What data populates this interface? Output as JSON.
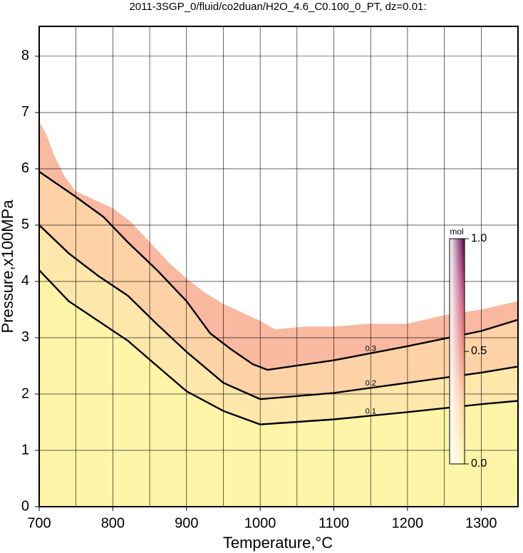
{
  "chart_data": {
    "type": "contour",
    "title": "2011-3SGP_0/fluid/co2duan/H2O_4.6_C0.100_0_PT, dz=0.01:",
    "x_label": "Temperature,°C",
    "y_label": "Pressure,x100MPa",
    "xlim": [
      700,
      1350
    ],
    "ylim": [
      0,
      8.53
    ],
    "xticks": [
      700,
      800,
      900,
      1000,
      1100,
      1200,
      1300
    ],
    "yticks": [
      0,
      1,
      2,
      3,
      4,
      5,
      6,
      7,
      8
    ],
    "xgrid": [
      700,
      750,
      800,
      850,
      900,
      950,
      1000,
      1050,
      1100,
      1150,
      1200,
      1250,
      1300,
      1350
    ],
    "grid": true,
    "boundary": {
      "x": [
        700,
        710,
        720,
        735,
        750,
        775,
        800,
        825,
        850,
        875,
        900,
        925,
        950,
        975,
        1000,
        1020,
        1060,
        1100,
        1150,
        1200,
        1250,
        1300,
        1350
      ],
      "y": [
        6.85,
        6.6,
        6.25,
        5.85,
        5.6,
        5.45,
        5.3,
        5.05,
        4.7,
        4.35,
        4.05,
        3.8,
        3.6,
        3.45,
        3.3,
        3.15,
        3.2,
        3.2,
        3.25,
        3.25,
        3.4,
        3.5,
        3.65
      ],
      "fill": "#f9b8a0"
    },
    "contours": [
      {
        "level": 0.3,
        "fill": "#fcd2a6",
        "x": [
          700,
          750,
          787,
          820,
          860,
          900,
          932,
          960,
          990,
          1010,
          1100,
          1200,
          1300,
          1350
        ],
        "y": [
          5.95,
          5.5,
          5.15,
          4.7,
          4.2,
          3.65,
          3.08,
          2.8,
          2.53,
          2.43,
          2.6,
          2.85,
          3.12,
          3.32
        ]
      },
      {
        "level": 0.2,
        "fill": "#fde7aa",
        "x": [
          700,
          740,
          780,
          820,
          860,
          900,
          950,
          1000,
          1100,
          1200,
          1300,
          1350
        ],
        "y": [
          5.0,
          4.5,
          4.1,
          3.75,
          3.24,
          2.75,
          2.2,
          1.91,
          2.02,
          2.2,
          2.38,
          2.49
        ]
      },
      {
        "level": 0.1,
        "fill": "#fff5a8",
        "x": [
          700,
          740,
          780,
          820,
          860,
          900,
          950,
          1000,
          1100,
          1200,
          1300,
          1350
        ],
        "y": [
          4.2,
          3.65,
          3.3,
          2.95,
          2.5,
          2.05,
          1.7,
          1.46,
          1.55,
          1.68,
          1.82,
          1.88
        ]
      }
    ],
    "colorbar": {
      "label": "mol",
      "lim": [
        0,
        1
      ],
      "ticks": [
        {
          "value": 0,
          "label": "0.0"
        },
        {
          "value": 0.5,
          "label": "0.5"
        },
        {
          "value": 1,
          "label": "1.0"
        }
      ]
    }
  }
}
